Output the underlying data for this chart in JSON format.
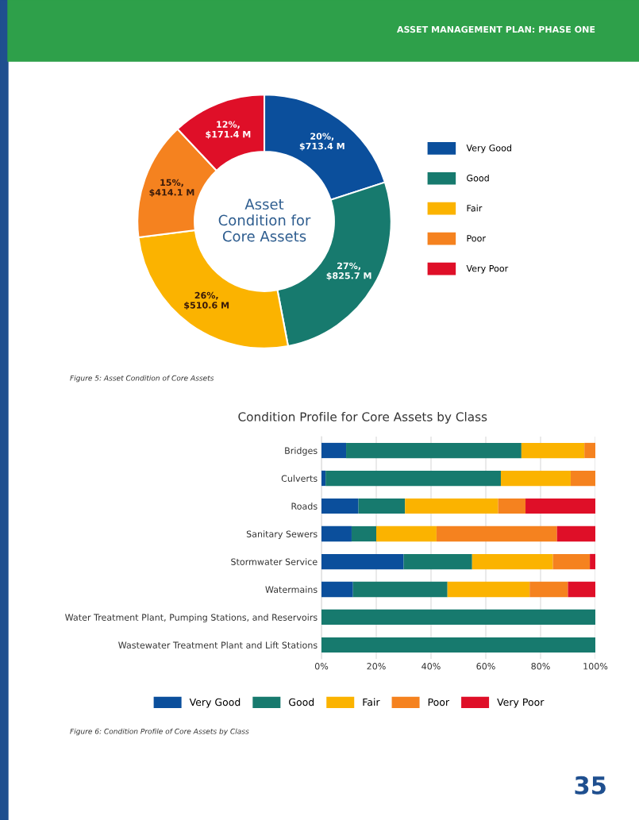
{
  "chart_data": [
    {
      "type": "donut",
      "title": "Asset\nCondition for\nCore Assets",
      "categories": [
        "Very Good",
        "Good",
        "Fair",
        "Poor",
        "Very Poor"
      ],
      "values": [
        20,
        27,
        26,
        15,
        12
      ],
      "value_labels": [
        "20%,\n$713.4 M",
        "27%,\n$825.7 M",
        "26%,\n$510.6 M",
        "15%,\n$414.1 M",
        "12%,\n$171.4 M"
      ],
      "colors": [
        "#0b4f9c",
        "#177a6e",
        "#fbb300",
        "#f5821f",
        "#df0f28"
      ],
      "legend": "right",
      "annotations": [
        "ASSET MANAGEMENT PLAN: PHASE ONE",
        "Figure 5: Asset Condition of Core Assets"
      ]
    },
    {
      "type": "bar",
      "title": "Condition Profile for Core Assets by Class",
      "orientation": "horizontal",
      "stacked": true,
      "categories": [
        "Bridges",
        "Culverts",
        "Roads",
        "Sanitary Sewers",
        "Stormwater Service",
        "Watermains",
        "Water Treatment Plant, Pumping Stations, and Reservoirs",
        "Wastewater Treatment Plant and Lift Stations"
      ],
      "series": [
        {
          "name": "Very Good",
          "color": "#0b4f9c",
          "values": [
            9,
            1.5,
            13.5,
            11,
            30,
            11.5,
            0,
            0
          ]
        },
        {
          "name": "Good",
          "color": "#177a6e",
          "values": [
            64,
            64,
            17,
            9,
            25,
            34.5,
            100,
            100
          ]
        },
        {
          "name": "Fair",
          "color": "#fbb300",
          "values": [
            23,
            25.5,
            34,
            22,
            29.5,
            30,
            0,
            0
          ]
        },
        {
          "name": "Poor",
          "color": "#f5821f",
          "values": [
            4,
            9,
            10,
            44,
            13.5,
            14,
            0,
            0
          ]
        },
        {
          "name": "Very Poor",
          "color": "#df0f28",
          "values": [
            0,
            0,
            25.5,
            14,
            2,
            10,
            0,
            0
          ]
        }
      ],
      "xlim": [
        0,
        100
      ],
      "xticks": [
        {
          "value": 0,
          "label": "0%"
        },
        {
          "value": 20,
          "label": "20%"
        },
        {
          "value": 40,
          "label": "40%"
        },
        {
          "value": 60,
          "label": "60%"
        },
        {
          "value": 80,
          "label": "80%"
        },
        {
          "value": 100,
          "label": "100%"
        }
      ],
      "grid": "x",
      "legend": "bottom",
      "annotations": [
        "Figure 6: Condition Profile of Core Assets by Class",
        "35"
      ]
    }
  ]
}
